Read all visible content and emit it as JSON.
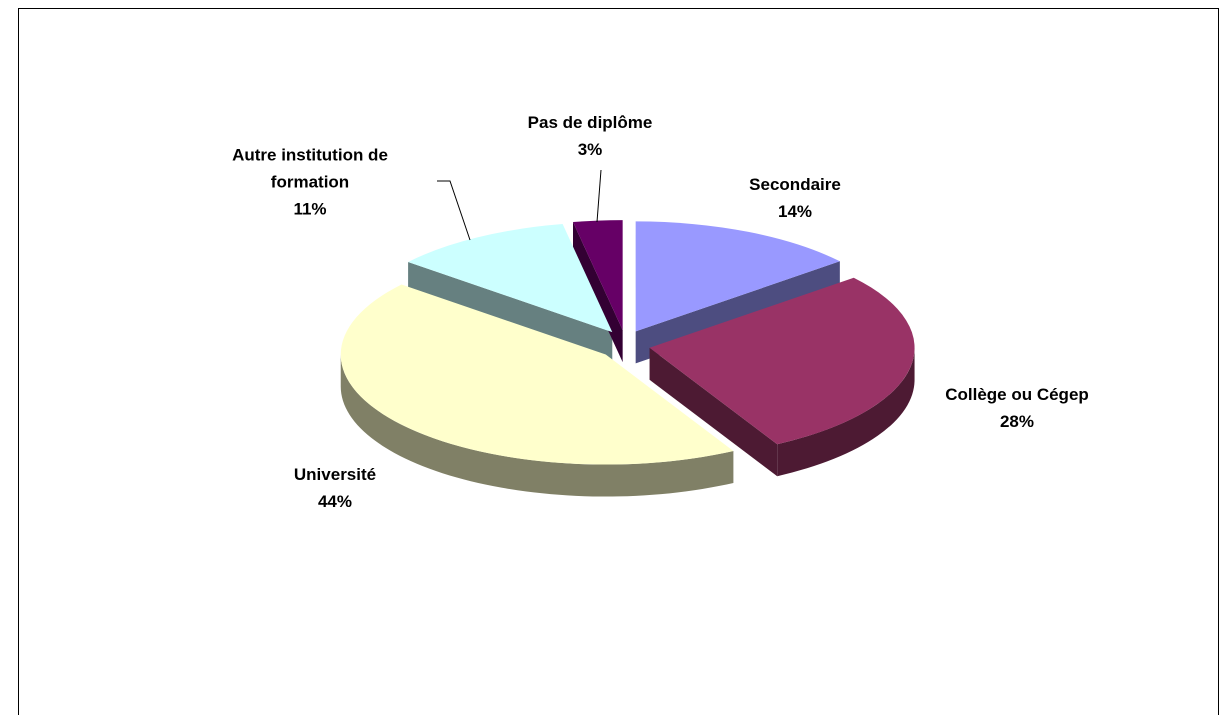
{
  "chart_data": {
    "type": "pie3d",
    "categories": [
      "Secondaire",
      "Collège ou Cégep",
      "Université",
      "Autre institution de formation",
      "Pas de diplôme"
    ],
    "values": [
      14,
      28,
      44,
      11,
      3
    ],
    "value_labels": [
      "14%",
      "28%",
      "44%",
      "11%",
      "3%"
    ],
    "colors": [
      "#9999ff",
      "#993366",
      "#ffffcc",
      "#ccffff",
      "#660066"
    ]
  }
}
